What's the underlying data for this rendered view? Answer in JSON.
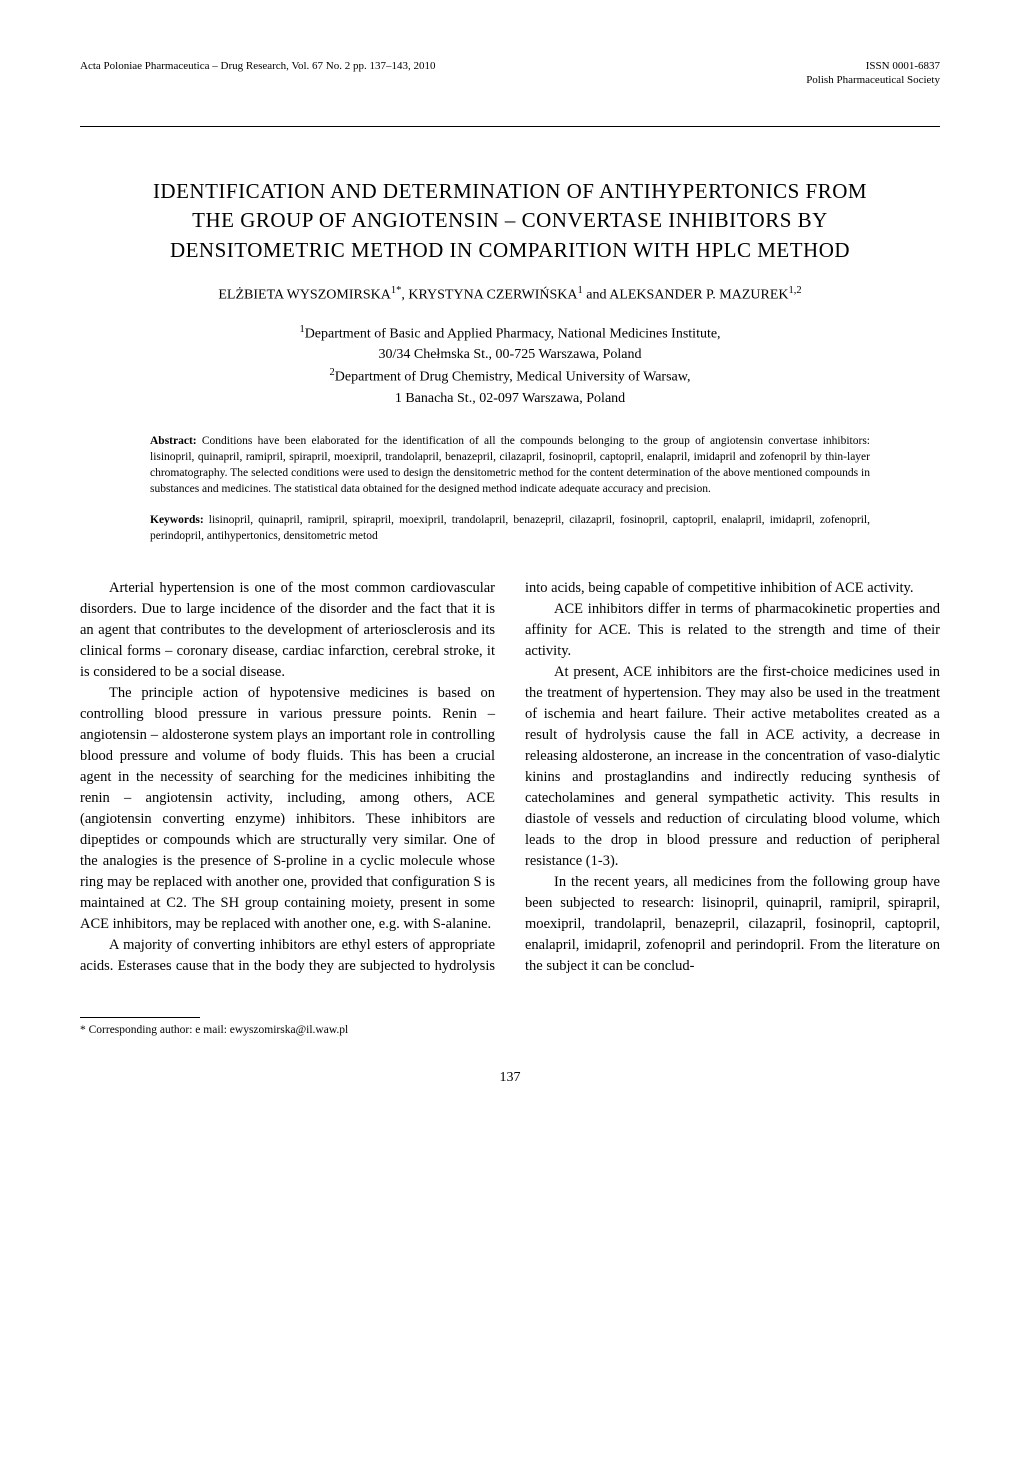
{
  "header": {
    "journal_ref": "Acta Poloniae Pharmaceutica – Drug Research, Vol. 67 No. 2 pp. 137–143, 2010",
    "issn": "ISSN 0001-6837",
    "society": "Polish Pharmaceutical Society"
  },
  "title_lines": {
    "line1": "IDENTIFICATION AND DETERMINATION OF ANTIHYPERTONICS FROM",
    "line2": "THE GROUP OF ANGIOTENSIN – CONVERTASE INHIBITORS BY",
    "line3": "DENSITOMETRIC METHOD IN COMPARITION WITH HPLC METHOD"
  },
  "authors_html": "ELŻBIETA WYSZOMIRSKA<sup>1*</sup>, KRYSTYNA CZERWIŃSKA<sup>1</sup> and ALEKSANDER P. MAZUREK<sup>1,2</sup>",
  "affiliations_html": "<sup>1</sup>Department of Basic and Applied Pharmacy, National Medicines Institute,<br>30/34 Chełmska St., 00-725 Warszawa, Poland<br><sup>2</sup>Department of Drug Chemistry, Medical University of Warsaw,<br>1 Banacha St., 02-097 Warszawa, Poland",
  "abstract": {
    "label": "Abstract:",
    "text": " Conditions have been elaborated for the identification of all the compounds belonging to the group of angiotensin convertase inhibitors: lisinopril, quinapril, ramipril, spirapril, moexipril, trandolapril, benazepril, cilazapril, fosinopril, captopril, enalapril, imidapril and zofenopril by thin-layer chromatography. The selected conditions were used to design the densitometric method for the content determination of the above mentioned compounds in substances and medicines. The statistical data obtained for the designed method indicate adequate accuracy and precision."
  },
  "keywords": {
    "label": "Keywords:",
    "text": " lisinopril, quinapril, ramipril, spirapril, moexipril, trandolapril, benazepril, cilazapril, fosinopril, captopril, enalapril, imidapril, zofenopril, perindopril, antihypertonics, densitometric metod"
  },
  "body": {
    "p1": "Arterial hypertension is one of the most common cardiovascular disorders. Due to large incidence of the disorder and the fact that it is an agent that contributes to the development of arteriosclerosis and its clinical forms – coronary disease, cardiac infarction, cerebral stroke, it is considered to be a social disease.",
    "p2": "The principle action of hypotensive medicines is based on controlling blood pressure in various pressure points. Renin – angiotensin – aldosterone system plays an important role in controlling blood pressure and volume of body fluids. This has been a crucial agent in the necessity of searching for the medicines inhibiting the renin – angiotensin activity, including, among others, ACE (angiotensin converting enzyme) inhibitors. These inhibitors are dipeptides or compounds which are structurally very similar. One of the analogies is the presence of S-proline in a cyclic molecule whose ring may be replaced with another one, provided that configuration S is maintained at C2. The SH group containing moiety, present in some ACE inhibitors, may be replaced with another one, e.g. with S-alanine.",
    "p3": "A majority of converting inhibitors are ethyl esters of appropriate acids. Esterases cause that in the body they are subjected to hydrolysis into acids, being capable of competitive inhibition of ACE activity.",
    "p4": "ACE inhibitors differ in terms of pharmacokinetic properties and affinity for ACE. This is related to the strength and time of their activity.",
    "p5": "At present, ACE inhibitors are the first-choice medicines used in the treatment of hypertension. They may also be used in the treatment of ischemia and heart failure. Their active metabolites created as a result of hydrolysis cause the fall in ACE activity, a decrease in releasing aldosterone, an increase in the concentration of vaso-dialytic kinins and prostaglandins and indirectly reducing synthesis of catecholamines and general sympathetic activity. This results in diastole of vessels and reduction of circulating blood volume, which leads to the drop in blood pressure and reduction of peripheral resistance (1-3).",
    "p6": "In the recent years, all medicines from the following group have been subjected to research: lisinopril, quinapril, ramipril, spirapril, moexipril, trandolapril, benazepril, cilazapril, fosinopril, captopril, enalapril, imidapril, zofenopril and perindopril. From the literature on the subject it can be conclud-"
  },
  "footnote": "* Corresponding author: e mail: ewyszomirska@il.waw.pl",
  "page_number": "137"
}
